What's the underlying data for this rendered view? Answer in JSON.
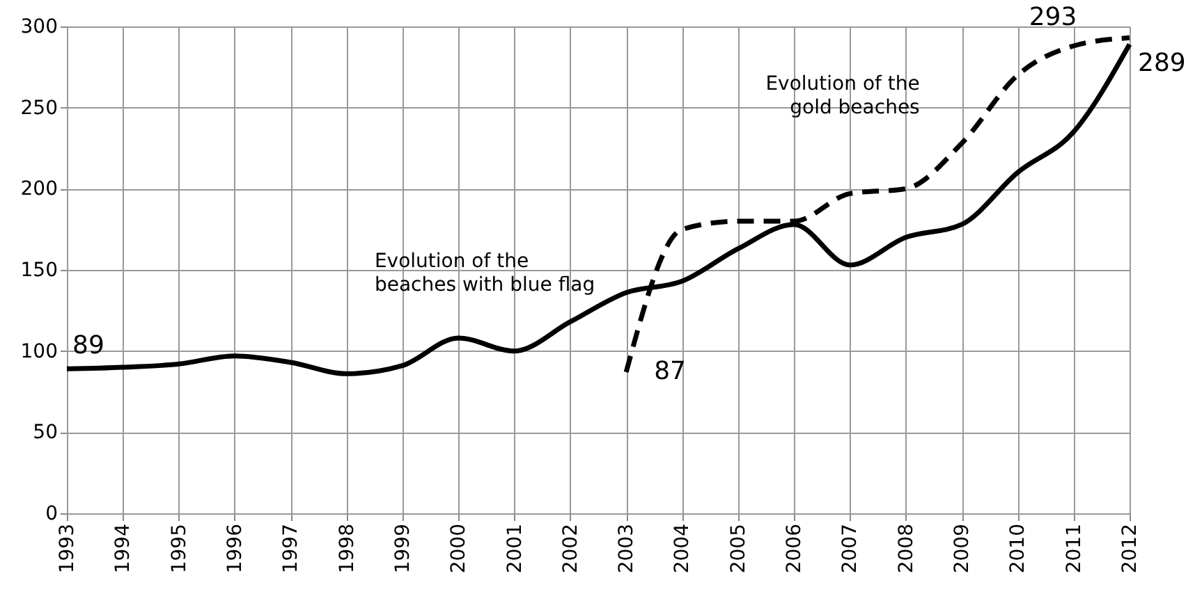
{
  "chart_data": {
    "type": "line",
    "xlim": [
      1993,
      2012
    ],
    "xticks": [
      1993,
      1994,
      1995,
      1996,
      1997,
      1998,
      1999,
      2000,
      2001,
      2002,
      2003,
      2004,
      2005,
      2006,
      2007,
      2008,
      2009,
      2010,
      2011,
      2012
    ],
    "ylim": [
      0,
      300
    ],
    "yticks": [
      0,
      50,
      100,
      150,
      200,
      250,
      300
    ],
    "grid": true,
    "legend": false,
    "marker": "none",
    "series": [
      {
        "name": "Evolution of the\nbeaches with blue flag",
        "color": "#000000",
        "line_style": "solid",
        "x": [
          1993,
          1994,
          1995,
          1996,
          1997,
          1998,
          1999,
          2000,
          2001,
          2002,
          2003,
          2004,
          2005,
          2006,
          2007,
          2008,
          2009,
          2010,
          2011,
          2012
        ],
        "values": [
          89,
          90,
          92,
          97,
          93,
          86,
          91,
          108,
          100,
          118,
          136,
          143,
          163,
          178,
          153,
          170,
          178,
          210,
          235,
          289
        ]
      },
      {
        "name": "Evolution of the\ngold beaches",
        "color": "#000000",
        "line_style": "dashed",
        "x": [
          2003,
          2004,
          2005,
          2006,
          2007,
          2008,
          2009,
          2010,
          2011,
          2012
        ],
        "values": [
          87,
          175,
          180,
          180,
          197,
          200,
          228,
          270,
          288,
          293
        ]
      }
    ],
    "annotations": [
      {
        "text": "89",
        "x": 1993,
        "y": 89
      },
      {
        "text": "87",
        "x": 2003,
        "y": 87
      },
      {
        "text": "293",
        "x": 2012,
        "y": 293
      },
      {
        "text": "289",
        "x": 2012,
        "y": 289
      }
    ]
  }
}
